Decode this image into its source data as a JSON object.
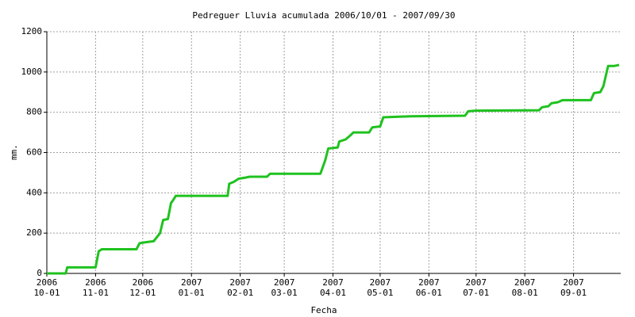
{
  "chart_data": {
    "type": "line",
    "title": "Pedreguer Lluvia acumulada 2006/10/01 - 2007/09/30",
    "x_label": "Fecha",
    "y_label": "mm.",
    "xlim": [
      "2006-10-01",
      "2007-10-01"
    ],
    "xticks": [
      {
        "value": "2006-10-01",
        "label": [
          "2006",
          "10-01"
        ]
      },
      {
        "value": "2006-11-01",
        "label": [
          "2006",
          "11-01"
        ]
      },
      {
        "value": "2006-12-01",
        "label": [
          "2006",
          "12-01"
        ]
      },
      {
        "value": "2007-01-01",
        "label": [
          "2007",
          "01-01"
        ]
      },
      {
        "value": "2007-02-01",
        "label": [
          "2007",
          "02-01"
        ]
      },
      {
        "value": "2007-03-01",
        "label": [
          "2007",
          "03-01"
        ]
      },
      {
        "value": "2007-04-01",
        "label": [
          "2007",
          "04-01"
        ]
      },
      {
        "value": "2007-05-01",
        "label": [
          "2007",
          "05-01"
        ]
      },
      {
        "value": "2007-06-01",
        "label": [
          "2007",
          "06-01"
        ]
      },
      {
        "value": "2007-07-01",
        "label": [
          "2007",
          "07-01"
        ]
      },
      {
        "value": "2007-08-01",
        "label": [
          "2007",
          "08-01"
        ]
      },
      {
        "value": "2007-09-01",
        "label": [
          "2007",
          "09-01"
        ]
      }
    ],
    "ylim": [
      0,
      1200
    ],
    "yticks": [
      0,
      200,
      400,
      600,
      800,
      1000,
      1200
    ],
    "grid": true,
    "x": [
      "2006-10-01",
      "2006-10-13",
      "2006-10-14",
      "2006-11-01",
      "2006-11-03",
      "2006-11-05",
      "2006-11-27",
      "2006-11-29",
      "2006-12-03",
      "2006-12-08",
      "2006-12-12",
      "2006-12-14",
      "2006-12-17",
      "2006-12-19",
      "2006-12-20",
      "2006-12-22",
      "2007-01-24",
      "2007-01-25",
      "2007-01-28",
      "2007-01-31",
      "2007-02-04",
      "2007-02-07",
      "2007-02-18",
      "2007-02-20",
      "2007-03-24",
      "2007-03-27",
      "2007-03-29",
      "2007-04-04",
      "2007-04-05",
      "2007-04-09",
      "2007-04-12",
      "2007-04-14",
      "2007-04-24",
      "2007-04-26",
      "2007-05-01",
      "2007-05-03",
      "2007-05-20",
      "2007-06-24",
      "2007-06-26",
      "2007-07-01",
      "2007-08-10",
      "2007-08-12",
      "2007-08-16",
      "2007-08-18",
      "2007-08-22",
      "2007-08-25",
      "2007-09-12",
      "2007-09-14",
      "2007-09-18",
      "2007-09-20",
      "2007-09-23",
      "2007-09-27",
      "2007-09-30"
    ],
    "series": [
      {
        "color": "#1fc21f",
        "values": [
          0,
          0,
          30,
          30,
          110,
          120,
          120,
          150,
          155,
          160,
          200,
          265,
          270,
          350,
          360,
          385,
          385,
          445,
          455,
          470,
          475,
          480,
          480,
          495,
          495,
          560,
          620,
          625,
          655,
          665,
          685,
          700,
          700,
          725,
          730,
          775,
          780,
          783,
          805,
          808,
          810,
          825,
          830,
          845,
          850,
          860,
          860,
          895,
          900,
          930,
          1030,
          1030,
          1035
        ]
      }
    ]
  }
}
